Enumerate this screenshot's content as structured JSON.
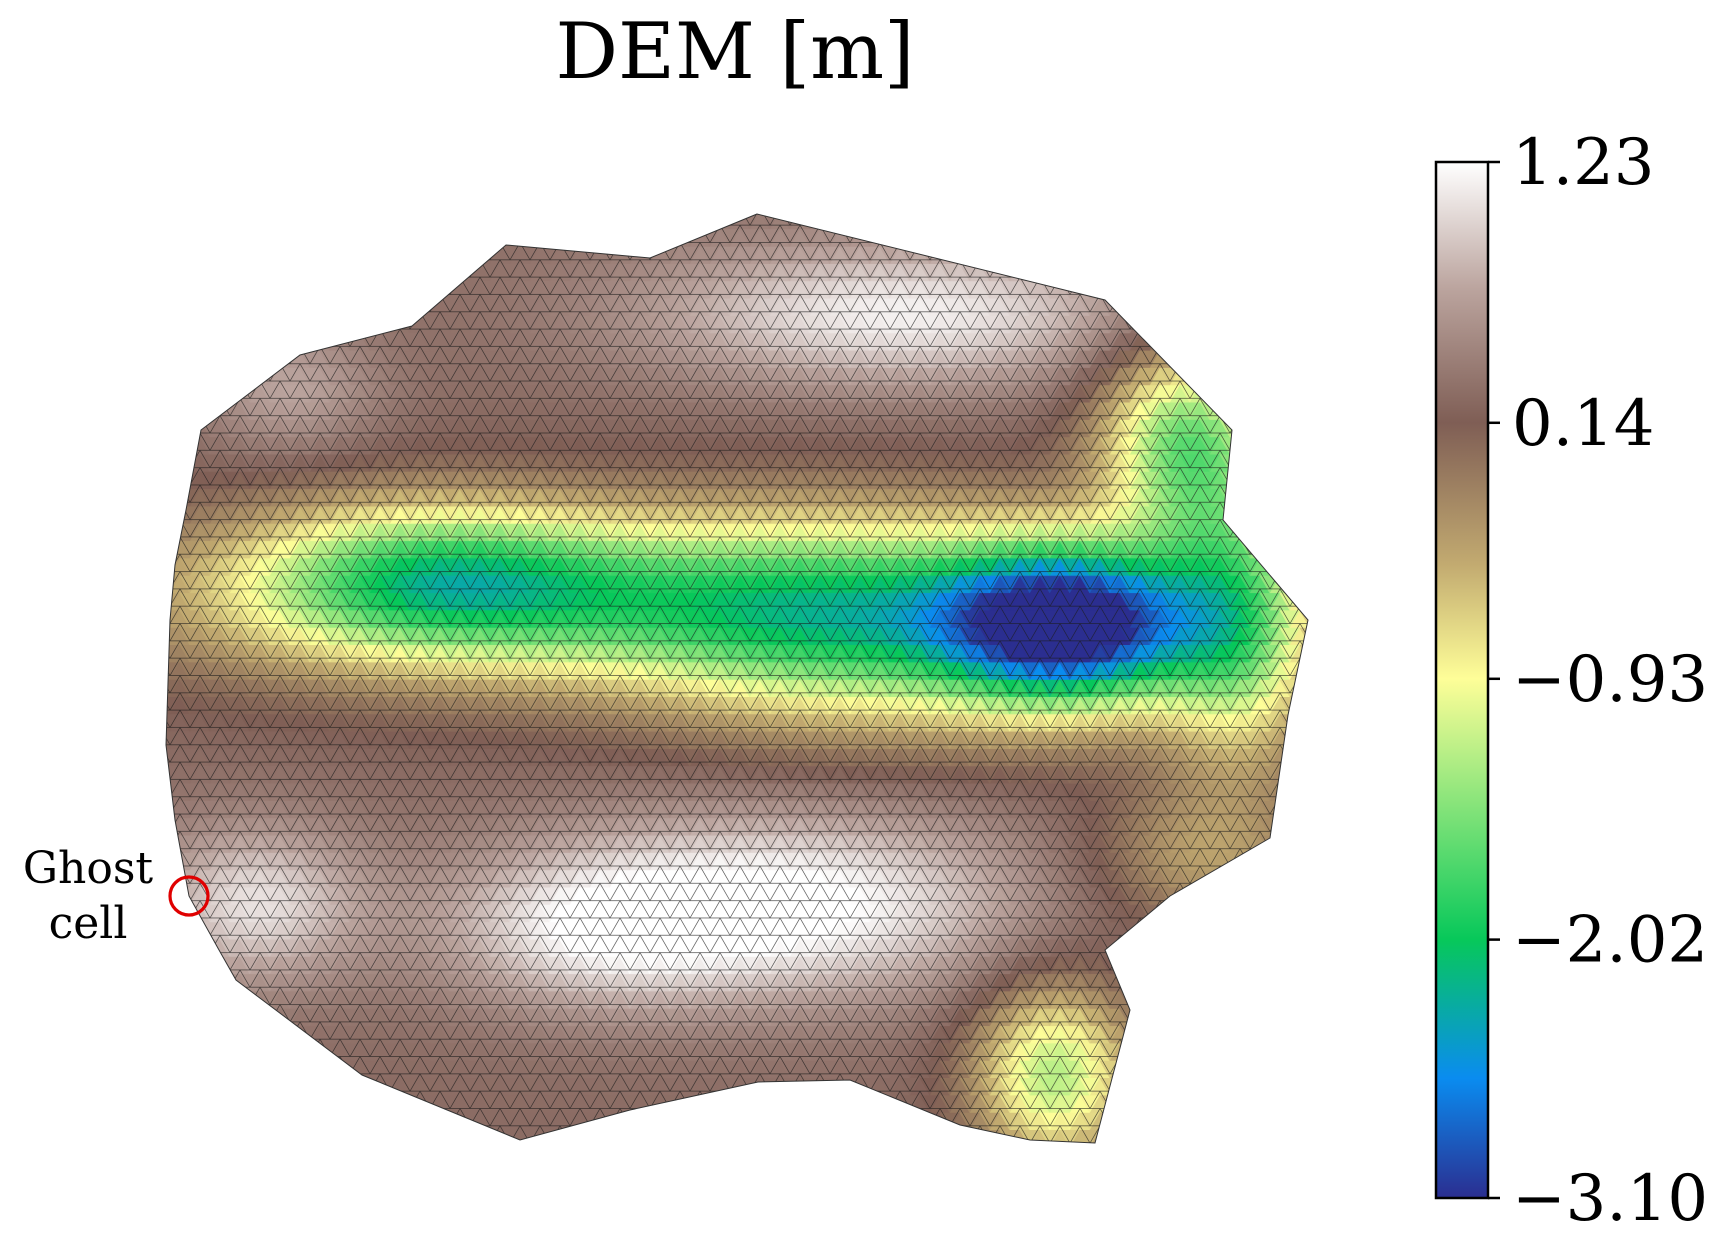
{
  "chart_data": {
    "type": "heatmap",
    "title": "DEM [m]",
    "colorbar": {
      "min": -3.1,
      "max": 1.23,
      "ticks": [
        "1.23",
        "0.14",
        "−0.93",
        "−2.02",
        "−3.10"
      ],
      "tick_values": [
        1.23,
        0.14,
        -0.93,
        -2.02,
        -3.1
      ],
      "colormap": "terrain_r",
      "stops": [
        {
          "value": -3.1,
          "color": "#2b2e90"
        },
        {
          "value": -2.6,
          "color": "#0a8cf0"
        },
        {
          "value": -2.02,
          "color": "#07c85a"
        },
        {
          "value": -0.93,
          "color": "#fefe98"
        },
        {
          "value": -0.45,
          "color": "#c2aa70"
        },
        {
          "value": 0.14,
          "color": "#7f5e55"
        },
        {
          "value": 0.7,
          "color": "#bba49e"
        },
        {
          "value": 1.23,
          "color": "#ffffff"
        }
      ]
    },
    "mesh": {
      "type": "triangular",
      "edge_color": "#1a1a1a"
    },
    "annotation": {
      "label_line1": "Ghost",
      "label_line2": "cell",
      "marker_color": "#e00000"
    }
  }
}
